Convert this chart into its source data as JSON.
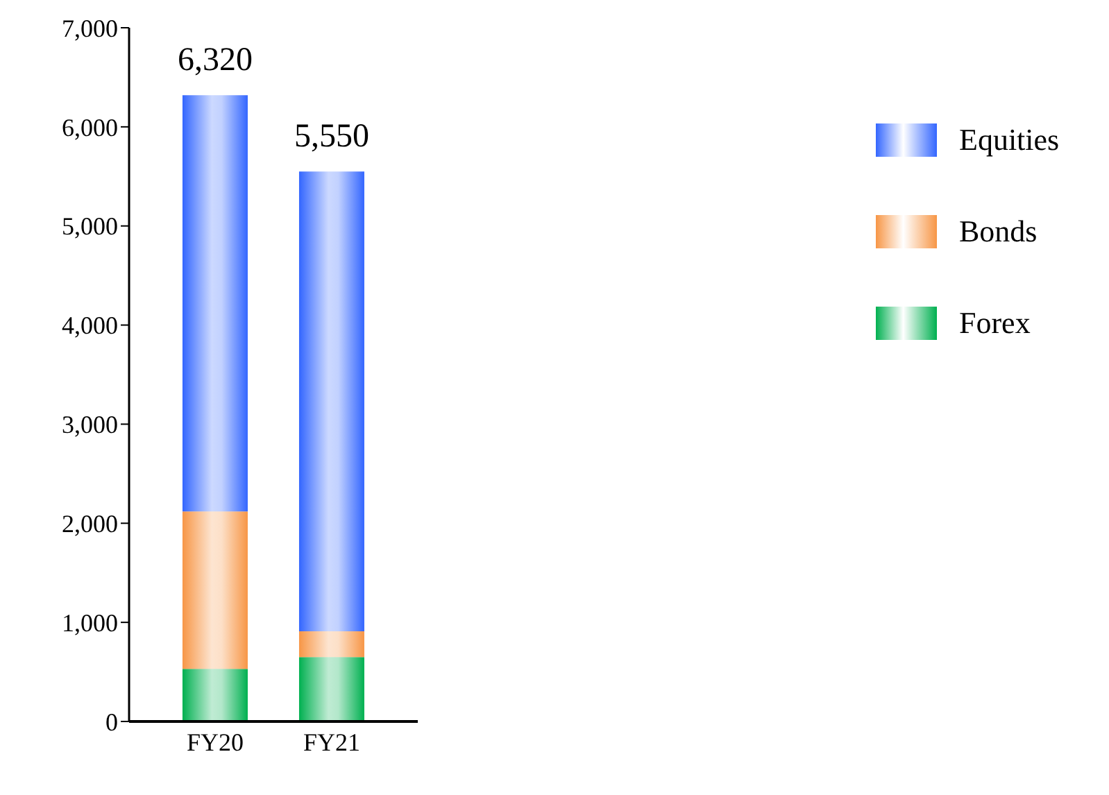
{
  "chart_data": {
    "type": "bar",
    "stacked": true,
    "categories": [
      "FY20",
      "FY21"
    ],
    "series": [
      {
        "name": "Forex",
        "color": "#00b050",
        "values": [
          530,
          650
        ]
      },
      {
        "name": "Bonds",
        "color": "#f79646",
        "values": [
          1590,
          260
        ]
      },
      {
        "name": "Equities",
        "color": "#3366ff",
        "values": [
          4200,
          4640
        ]
      }
    ],
    "totals": [
      "6,320",
      "5,550"
    ],
    "ylim": [
      0,
      7000
    ],
    "yticks": [
      {
        "value": 0,
        "label": "0"
      },
      {
        "value": 1000,
        "label": "1,000"
      },
      {
        "value": 2000,
        "label": "2,000"
      },
      {
        "value": 3000,
        "label": "3,000"
      },
      {
        "value": 4000,
        "label": "4,000"
      },
      {
        "value": 5000,
        "label": "5,000"
      },
      {
        "value": 6000,
        "label": "6,000"
      },
      {
        "value": 7000,
        "label": "7,000"
      }
    ],
    "grid": false,
    "legend": "top right"
  }
}
